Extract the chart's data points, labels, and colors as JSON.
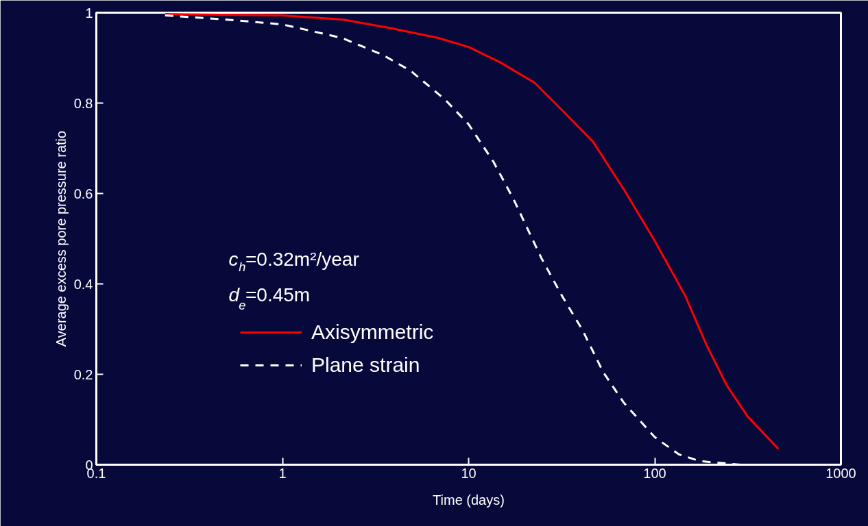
{
  "chart_data": {
    "type": "line",
    "xlabel": "Time (days)",
    "ylabel": "Average excess pore pressure ratio",
    "log": "x",
    "xlim": [
      0.1,
      1000
    ],
    "xticks": [
      0.1,
      1,
      10,
      100,
      1000
    ],
    "ylim": [
      0,
      1
    ],
    "yticks": [
      0,
      0.2,
      0.4,
      0.6,
      0.8,
      1
    ],
    "grid": false,
    "legend": "left",
    "marker": "none",
    "annotations": [
      "c$_{h}$=0.32m²/year",
      "d$_{e}$=0.45m"
    ],
    "series": [
      {
        "name": "Axisymmetric",
        "color": "#ff0000",
        "line_style": "solid",
        "x": [
          0.234,
          1,
          2.09,
          3.8,
          6.9,
          10,
          14.8,
          22.6,
          31.8,
          46.5,
          68.2,
          100,
          146,
          189,
          244,
          315,
          461
        ],
        "values": [
          0.997,
          0.994,
          0.985,
          0.966,
          0.944,
          0.924,
          0.89,
          0.845,
          0.784,
          0.715,
          0.609,
          0.495,
          0.373,
          0.266,
          0.175,
          0.107,
          0.035
        ]
      },
      {
        "name": "Plane strain",
        "color": "#ffffff",
        "line_style": "dashed",
        "x": [
          0.234,
          0.494,
          1,
          2.09,
          3.48,
          4.9,
          7.5,
          10,
          13.6,
          17.5,
          24.6,
          31.8,
          41,
          52.8,
          68.2,
          100,
          134.6,
          174,
          289
        ],
        "values": [
          0.994,
          0.985,
          0.974,
          0.944,
          0.906,
          0.871,
          0.807,
          0.753,
          0.67,
          0.586,
          0.457,
          0.373,
          0.297,
          0.205,
          0.137,
          0.061,
          0.023,
          0.008,
          0.0
        ]
      }
    ]
  }
}
